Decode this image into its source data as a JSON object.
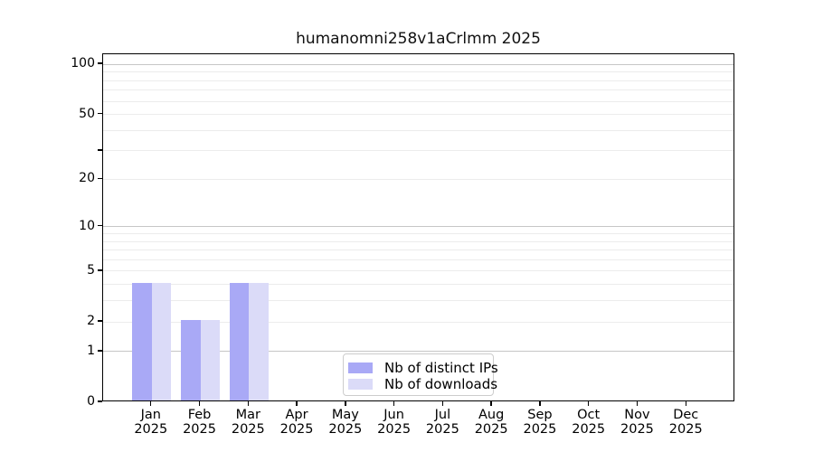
{
  "title": "humanomni258v1aCrlmm 2025",
  "colors": {
    "distinct_ips": "#a9a9f6",
    "downloads": "#dbdbf8",
    "grid_minor": "#ececec",
    "grid_major": "#c6c6c6",
    "axis": "#000000",
    "legend_border": "#cccccc",
    "background": "#ffffff"
  },
  "chart_data": {
    "type": "bar",
    "title": "humanomni258v1aCrlmm 2025",
    "categories": [
      "Jan 2025",
      "Feb 2025",
      "Mar 2025",
      "Apr 2025",
      "May 2025",
      "Jun 2025",
      "Jul 2025",
      "Aug 2025",
      "Sep 2025",
      "Oct 2025",
      "Nov 2025",
      "Dec 2025"
    ],
    "x_tick_labels": [
      {
        "line1": "Jan",
        "line2": "2025"
      },
      {
        "line1": "Feb",
        "line2": "2025"
      },
      {
        "line1": "Mar",
        "line2": "2025"
      },
      {
        "line1": "Apr",
        "line2": "2025"
      },
      {
        "line1": "May",
        "line2": "2025"
      },
      {
        "line1": "Jun",
        "line2": "2025"
      },
      {
        "line1": "Jul",
        "line2": "2025"
      },
      {
        "line1": "Aug",
        "line2": "2025"
      },
      {
        "line1": "Sep",
        "line2": "2025"
      },
      {
        "line1": "Oct",
        "line2": "2025"
      },
      {
        "line1": "Nov",
        "line2": "2025"
      },
      {
        "line1": "Dec",
        "line2": "2025"
      }
    ],
    "series": [
      {
        "name": "Nb of distinct IPs",
        "color": "#a9a9f6",
        "values": [
          4,
          2,
          4,
          0,
          0,
          0,
          0,
          0,
          0,
          0,
          0,
          0
        ]
      },
      {
        "name": "Nb of downloads",
        "color": "#dbdbf8",
        "values": [
          4,
          2,
          4,
          0,
          0,
          0,
          0,
          0,
          0,
          0,
          0,
          0
        ]
      }
    ],
    "xlabel": "",
    "ylabel": "",
    "yscale": "log1p",
    "ylim": [
      0,
      115
    ],
    "yticks": [
      {
        "value": 100,
        "label": "100"
      },
      {
        "value": 50,
        "label": "50"
      },
      {
        "value": 30,
        "label": ""
      },
      {
        "value": 20,
        "label": "20"
      },
      {
        "value": 10,
        "label": "10"
      },
      {
        "value": 5,
        "label": "5"
      },
      {
        "value": 2,
        "label": "2"
      },
      {
        "value": 1,
        "label": "1"
      },
      {
        "value": 0,
        "label": "0"
      }
    ],
    "grid": "horizontal",
    "grid_minor_values": [
      2,
      3,
      4,
      5,
      6,
      7,
      8,
      9,
      20,
      30,
      40,
      50,
      60,
      70,
      80,
      90
    ],
    "grid_major_values": [
      1,
      10,
      100
    ],
    "legend_position": "lower-center-inside"
  }
}
